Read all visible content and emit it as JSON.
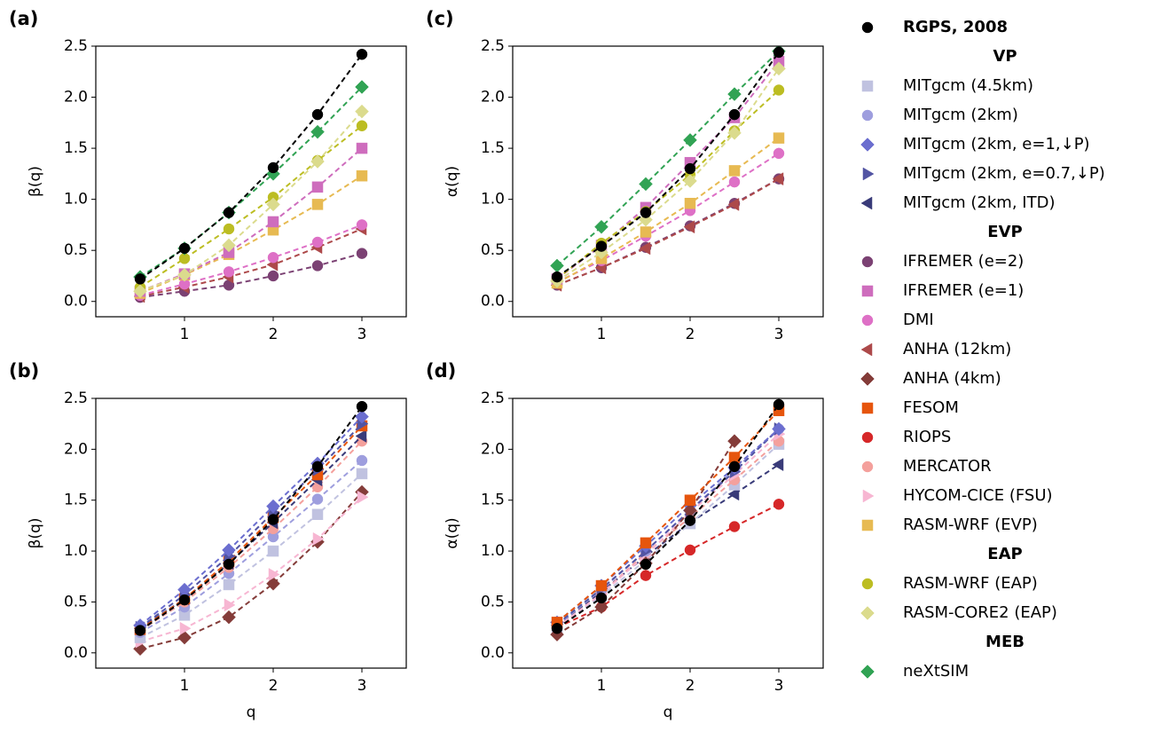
{
  "chart_data": [
    {
      "type": "line",
      "title": "(a)",
      "ylabel": "β(q)",
      "x": [
        0.5,
        1,
        1.5,
        2,
        2.5,
        3
      ],
      "xlim": [
        0,
        3.5
      ],
      "ylim": [
        -0.15,
        2.5
      ],
      "xticks": [
        1,
        2,
        3
      ],
      "yticks": [
        {
          "value": 0,
          "label": "0.0"
        },
        0.5,
        {
          "value": 1,
          "label": "1.0"
        },
        1.5,
        {
          "value": 2,
          "label": "2.0"
        },
        2.5
      ],
      "series": [
        {
          "name": "IFREMER (e=2)",
          "values": [
            0.04,
            0.1,
            0.16,
            0.25,
            0.35,
            0.47
          ]
        },
        {
          "name": "ANHA (12km)",
          "values": [
            0.05,
            0.14,
            0.24,
            0.36,
            0.53,
            0.71
          ]
        },
        {
          "name": "DMI",
          "values": [
            0.06,
            0.17,
            0.29,
            0.43,
            0.58,
            0.75
          ]
        },
        {
          "name": "RASM-WRF (EVP)",
          "values": [
            0.08,
            0.26,
            0.46,
            0.7,
            0.95,
            1.23
          ]
        },
        {
          "name": "IFREMER (e=1)",
          "values": [
            0.1,
            0.27,
            0.48,
            0.78,
            1.12,
            1.5
          ]
        },
        {
          "name": "RASM-WRF (EAP)",
          "values": [
            0.14,
            0.42,
            0.71,
            1.02,
            1.38,
            1.72
          ]
        },
        {
          "name": "RASM-CORE2 (EAP)",
          "values": [
            0.1,
            0.26,
            0.55,
            0.95,
            1.37,
            1.86
          ]
        },
        {
          "name": "neXtSIM",
          "values": [
            0.24,
            0.52,
            0.87,
            1.25,
            1.66,
            2.1
          ]
        },
        {
          "name": "RGPS, 2008",
          "values": [
            0.22,
            0.52,
            0.87,
            1.31,
            1.83,
            2.42
          ]
        }
      ]
    },
    {
      "type": "line",
      "title": "(b)",
      "ylabel": "β(q)",
      "xlabel": "q",
      "x": [
        0.5,
        1,
        1.5,
        2,
        2.5,
        3
      ],
      "xlim": [
        0,
        3.5
      ],
      "ylim": [
        -0.15,
        2.5
      ],
      "xticks": [
        1,
        2,
        3
      ],
      "yticks": [
        {
          "value": 0,
          "label": "0.0"
        },
        0.5,
        {
          "value": 1,
          "label": "1.0"
        },
        1.5,
        {
          "value": 2,
          "label": "2.0"
        },
        2.5
      ],
      "series": [
        {
          "name": "ANHA (4km)",
          "values": [
            0.04,
            0.15,
            0.35,
            0.68,
            1.09,
            1.58
          ]
        },
        {
          "name": "HYCOM-CICE (FSU)",
          "values": [
            0.11,
            0.24,
            0.47,
            0.77,
            1.12,
            1.53
          ]
        },
        {
          "name": "MITgcm (4.5km)",
          "values": [
            0.15,
            0.37,
            0.67,
            1.0,
            1.36,
            1.76
          ]
        },
        {
          "name": "MITgcm (2km)",
          "values": [
            0.2,
            0.45,
            0.78,
            1.14,
            1.51,
            1.89
          ]
        },
        {
          "name": "MERCATOR",
          "values": [
            0.22,
            0.5,
            0.84,
            1.22,
            1.63,
            2.08
          ]
        },
        {
          "name": "MITgcm (2km, ITD)",
          "values": [
            0.24,
            0.53,
            0.88,
            1.28,
            1.7,
            2.13
          ]
        },
        {
          "name": "FESOM",
          "values": [
            0.23,
            0.53,
            0.9,
            1.33,
            1.75,
            2.23
          ]
        },
        {
          "name": "MITgcm (2km, e=0.7,↓P)",
          "values": [
            0.25,
            0.57,
            0.95,
            1.38,
            1.8,
            2.25
          ]
        },
        {
          "name": "MITgcm (2km, e=1,↓P)",
          "values": [
            0.27,
            0.62,
            1.01,
            1.44,
            1.86,
            2.32
          ]
        },
        {
          "name": "RGPS, 2008",
          "values": [
            0.22,
            0.52,
            0.87,
            1.31,
            1.83,
            2.42
          ]
        }
      ]
    },
    {
      "type": "line",
      "title": "(c)",
      "ylabel": "α(q)",
      "x": [
        0.5,
        1,
        1.5,
        2,
        2.5,
        3
      ],
      "xlim": [
        0,
        3.5
      ],
      "ylim": [
        -0.15,
        2.5
      ],
      "xticks": [
        1,
        2,
        3
      ],
      "yticks": [
        {
          "value": 0,
          "label": "0.0"
        },
        0.5,
        {
          "value": 1,
          "label": "1.0"
        },
        1.5,
        {
          "value": 2,
          "label": "2.0"
        },
        2.5
      ],
      "series": [
        {
          "name": "IFREMER (e=2)",
          "values": [
            0.16,
            0.33,
            0.53,
            0.74,
            0.96,
            1.2
          ]
        },
        {
          "name": "ANHA (12km)",
          "values": [
            0.16,
            0.33,
            0.52,
            0.73,
            0.95,
            1.2
          ]
        },
        {
          "name": "DMI",
          "values": [
            0.19,
            0.4,
            0.64,
            0.89,
            1.17,
            1.45
          ]
        },
        {
          "name": "RASM-WRF (EVP)",
          "values": [
            0.18,
            0.42,
            0.68,
            0.96,
            1.28,
            1.6
          ]
        },
        {
          "name": "IFREMER (e=1)",
          "values": [
            0.22,
            0.55,
            0.92,
            1.36,
            1.8,
            2.35
          ]
        },
        {
          "name": "RASM-WRF (EAP)",
          "values": [
            0.22,
            0.57,
            0.88,
            1.24,
            1.67,
            2.07
          ]
        },
        {
          "name": "RASM-CORE2 (EAP)",
          "values": [
            0.2,
            0.48,
            0.8,
            1.18,
            1.65,
            2.28
          ]
        },
        {
          "name": "neXtSIM",
          "values": [
            0.35,
            0.73,
            1.15,
            1.58,
            2.03,
            2.45
          ]
        },
        {
          "name": "RGPS, 2008",
          "values": [
            0.24,
            0.54,
            0.87,
            1.3,
            1.83,
            2.44
          ]
        }
      ]
    },
    {
      "type": "line",
      "title": "(d)",
      "ylabel": "α(q)",
      "xlabel": "q",
      "x": [
        0.5,
        1,
        1.5,
        2,
        2.5,
        3
      ],
      "xlim": [
        0,
        3.5
      ],
      "ylim": [
        -0.15,
        2.5
      ],
      "xticks": [
        1,
        2,
        3
      ],
      "yticks": [
        {
          "value": 0,
          "label": "0.0"
        },
        0.5,
        {
          "value": 1,
          "label": "1.0"
        },
        1.5,
        {
          "value": 2,
          "label": "2.0"
        },
        2.5
      ],
      "series": [
        {
          "name": "RIOPS",
          "values": [
            0.25,
            0.45,
            0.76,
            1.01,
            1.24,
            1.46
          ]
        },
        {
          "name": "MITgcm (2km, ITD)",
          "values": [
            0.27,
            0.6,
            0.95,
            1.28,
            1.56,
            1.85
          ]
        },
        {
          "name": "MITgcm (4.5km)",
          "values": [
            0.24,
            0.56,
            0.91,
            1.27,
            1.65,
            2.05
          ]
        },
        {
          "name": "MERCATOR",
          "values": [
            0.25,
            0.58,
            0.98,
            1.33,
            1.7,
            2.08
          ]
        },
        {
          "name": "HYCOM-CICE (FSU)",
          "values": [
            0.25,
            0.58,
            0.96,
            1.38,
            1.75,
            2.15
          ]
        },
        {
          "name": "MITgcm (2km)",
          "values": [
            0.27,
            0.62,
            1.0,
            1.4,
            1.8,
            2.2
          ]
        },
        {
          "name": "MITgcm (2km, e=0.7,↓P)",
          "values": [
            0.28,
            0.63,
            1.0,
            1.4,
            1.78,
            2.2
          ]
        },
        {
          "name": "MITgcm (2km, e=1,↓P)",
          "values": [
            0.3,
            0.66,
            1.05,
            1.45,
            1.82,
            2.2
          ]
        },
        {
          "name": "ANHA (4km)",
          "values": [
            0.18,
            0.45,
            0.88,
            1.4,
            2.08,
            null
          ]
        },
        {
          "name": "FESOM",
          "values": [
            0.3,
            0.66,
            1.08,
            1.5,
            1.92,
            2.38
          ]
        },
        {
          "name": "RGPS, 2008",
          "values": [
            0.24,
            0.54,
            0.87,
            1.3,
            1.83,
            2.44
          ]
        }
      ]
    }
  ],
  "legend": [
    {
      "entries": [
        {
          "name": "RGPS, 2008",
          "color": "#000000",
          "marker": "circle"
        }
      ]
    },
    {
      "title": "VP",
      "entries": [
        {
          "name": "MITgcm (4.5km)",
          "color": "#c0c2e0",
          "marker": "square"
        },
        {
          "name": "MITgcm (2km)",
          "color": "#9e9ede",
          "marker": "circle"
        },
        {
          "name": "MITgcm (2km, e=1,↓P)",
          "color": "#6b6ecf",
          "marker": "diamond"
        },
        {
          "name": "MITgcm (2km, e=0.7,↓P)",
          "color": "#5254a3",
          "marker": "triangle-right"
        },
        {
          "name": "MITgcm (2km, ITD)",
          "color": "#393b79",
          "marker": "triangle-left"
        }
      ]
    },
    {
      "title": "EVP",
      "entries": [
        {
          "name": "IFREMER (e=2)",
          "color": "#7b4173",
          "marker": "circle"
        },
        {
          "name": "IFREMER (e=1)",
          "color": "#ce6dbd",
          "marker": "square"
        },
        {
          "name": "DMI",
          "color": "#de70c6",
          "marker": "circle"
        },
        {
          "name": "ANHA (12km)",
          "color": "#ad494a",
          "marker": "triangle-left"
        },
        {
          "name": "ANHA (4km)",
          "color": "#843c39",
          "marker": "diamond"
        },
        {
          "name": "FESOM",
          "color": "#e6550d",
          "marker": "square"
        },
        {
          "name": "RIOPS",
          "color": "#d62728",
          "marker": "circle"
        },
        {
          "name": "MERCATOR",
          "color": "#f4a09c",
          "marker": "circle"
        },
        {
          "name": "HYCOM-CICE (FSU)",
          "color": "#f7b6d2",
          "marker": "triangle-right"
        },
        {
          "name": "RASM-WRF (EVP)",
          "color": "#e7ba52",
          "marker": "square"
        }
      ]
    },
    {
      "title": "EAP",
      "entries": [
        {
          "name": "RASM-WRF (EAP)",
          "color": "#bcbd22",
          "marker": "circle"
        },
        {
          "name": "RASM-CORE2 (EAP)",
          "color": "#dbdb8d",
          "marker": "diamond"
        }
      ]
    },
    {
      "title": "MEB",
      "entries": [
        {
          "name": "neXtSIM",
          "color": "#31a354",
          "marker": "diamond"
        }
      ]
    }
  ]
}
